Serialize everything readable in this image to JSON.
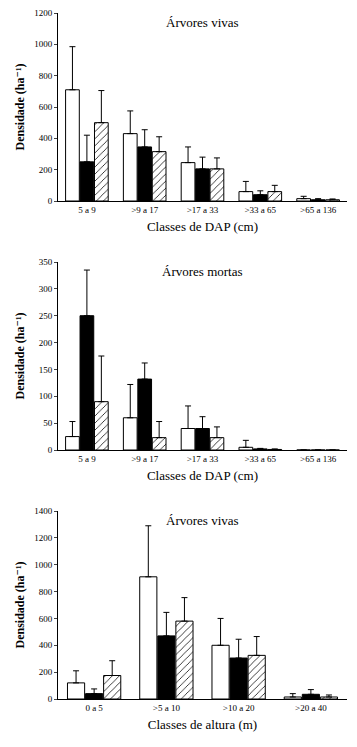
{
  "chart_data": [
    {
      "type": "bar",
      "title": "Árvores vivas",
      "x_label": "Classes de DAP (cm)",
      "y_label": "Densidade (ha⁻¹)",
      "categories": [
        "5 a 9",
        ">9 a 17",
        ">17 a 33",
        ">33 a 65",
        ">65 a 136"
      ],
      "series": [
        {
          "color": "#ffffff",
          "values": [
            710,
            430,
            245,
            60,
            15
          ],
          "error": [
            275,
            145,
            100,
            65,
            15
          ]
        },
        {
          "color": "#000000",
          "values": [
            250,
            345,
            205,
            40,
            8
          ],
          "error": [
            170,
            110,
            75,
            25,
            7
          ]
        },
        {
          "color": "#ffffff",
          "marker": "hatched",
          "values": [
            500,
            315,
            205,
            60,
            8
          ],
          "error": [
            205,
            95,
            70,
            40,
            5
          ]
        }
      ],
      "ylim": [
        0,
        1200
      ],
      "yticks": [
        0,
        200,
        400,
        600,
        800,
        1000,
        1200
      ],
      "grid": false
    },
    {
      "type": "bar",
      "title": "Árvores mortas",
      "x_label": "Classes de DAP (cm)",
      "y_label": "Densidade (ha⁻¹)",
      "categories": [
        "5 a 9",
        ">9 a 17",
        ">17 a 33",
        ">33 a 65",
        ">65 a 136"
      ],
      "series": [
        {
          "color": "#ffffff",
          "values": [
            25,
            60,
            40,
            5,
            0
          ],
          "error": [
            28,
            62,
            42,
            13,
            0
          ]
        },
        {
          "color": "#000000",
          "values": [
            250,
            132,
            40,
            2,
            0
          ],
          "error": [
            85,
            30,
            22,
            1,
            0
          ]
        },
        {
          "color": "#ffffff",
          "marker": "hatched",
          "values": [
            90,
            23,
            23,
            1,
            0
          ],
          "error": [
            85,
            30,
            20,
            1,
            0
          ]
        }
      ],
      "ylim": [
        0,
        350
      ],
      "yticks": [
        0,
        50,
        100,
        150,
        200,
        250,
        300,
        350
      ],
      "grid": false
    },
    {
      "type": "bar",
      "title": "Árvores vivas",
      "x_label": "Classes de altura (m)",
      "y_label": "Densidade (ha⁻¹)",
      "categories": [
        "0 a 5",
        ">5 a 10",
        ">10 a 20",
        ">20 a 40"
      ],
      "series": [
        {
          "color": "#ffffff",
          "values": [
            120,
            910,
            400,
            15
          ],
          "error": [
            90,
            380,
            200,
            25
          ]
        },
        {
          "color": "#000000",
          "values": [
            40,
            470,
            305,
            35
          ],
          "error": [
            35,
            175,
            140,
            35
          ]
        },
        {
          "color": "#ffffff",
          "marker": "hatched",
          "values": [
            175,
            580,
            325,
            15
          ],
          "error": [
            110,
            175,
            140,
            15
          ]
        }
      ],
      "ylim": [
        0,
        1400
      ],
      "yticks": [
        0,
        200,
        400,
        600,
        800,
        1000,
        1200,
        1400
      ],
      "grid": false
    }
  ]
}
